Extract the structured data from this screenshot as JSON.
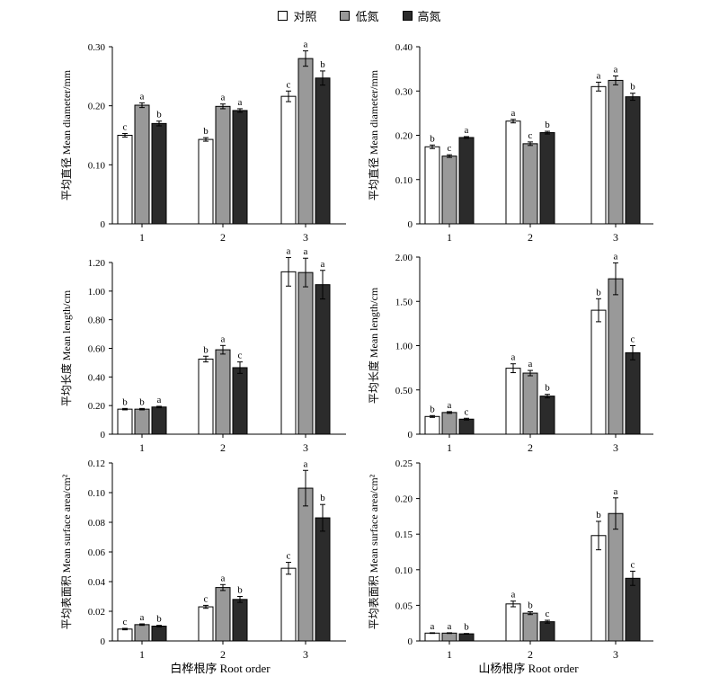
{
  "legend": [
    {
      "label": "对照",
      "color": "#ffffff"
    },
    {
      "label": "低氮",
      "color": "#999999"
    },
    {
      "label": "高氮",
      "color": "#2b2b2b"
    }
  ],
  "xlabels": {
    "left": "白桦根序 Root order",
    "right": "山杨根序 Root order"
  },
  "chart_data": [
    {
      "type": "bar",
      "panel": "left-top",
      "ylabel": "平均直径 Mean diameter/mm",
      "categories": [
        "1",
        "2",
        "3"
      ],
      "ylim": [
        0,
        0.3
      ],
      "yticks": [
        "0",
        "0.10",
        "0.20",
        "0.30"
      ],
      "ytick_values": [
        0,
        0.1,
        0.2,
        0.3
      ],
      "series": [
        {
          "name": "对照",
          "values": [
            0.15,
            0.143,
            0.216
          ],
          "errors": [
            0.003,
            0.003,
            0.009
          ],
          "letters": [
            "c",
            "b",
            "c"
          ]
        },
        {
          "name": "低氮",
          "values": [
            0.201,
            0.199,
            0.28
          ],
          "errors": [
            0.004,
            0.004,
            0.013
          ],
          "letters": [
            "a",
            "a",
            "a"
          ]
        },
        {
          "name": "高氮",
          "values": [
            0.17,
            0.192,
            0.247
          ],
          "errors": [
            0.004,
            0.003,
            0.012
          ],
          "letters": [
            "b",
            "a",
            "b"
          ]
        }
      ]
    },
    {
      "type": "bar",
      "panel": "right-top",
      "ylabel": "平均直径 Mean diameter/mm",
      "categories": [
        "1",
        "2",
        "3"
      ],
      "ylim": [
        0,
        0.4
      ],
      "yticks": [
        "0",
        "0.10",
        "0.20",
        "0.30",
        "0.40"
      ],
      "ytick_values": [
        0,
        0.1,
        0.2,
        0.3,
        0.4
      ],
      "series": [
        {
          "name": "对照",
          "values": [
            0.174,
            0.232,
            0.31
          ],
          "errors": [
            0.004,
            0.004,
            0.01
          ],
          "letters": [
            "b",
            "a",
            "a"
          ]
        },
        {
          "name": "低氮",
          "values": [
            0.153,
            0.181,
            0.324
          ],
          "errors": [
            0.003,
            0.004,
            0.01
          ],
          "letters": [
            "c",
            "c",
            "a"
          ]
        },
        {
          "name": "高氮",
          "values": [
            0.195,
            0.206,
            0.287
          ],
          "errors": [
            0.002,
            0.003,
            0.008
          ],
          "letters": [
            "a",
            "b",
            "b"
          ]
        }
      ]
    },
    {
      "type": "bar",
      "panel": "left-middle",
      "ylabel": "平均长度 Mean length/cm",
      "categories": [
        "1",
        "2",
        "3"
      ],
      "ylim": [
        0,
        1.2
      ],
      "yticks": [
        "0",
        "0.20",
        "0.40",
        "0.60",
        "0.80",
        "1.00",
        "1.20"
      ],
      "ytick_values": [
        0,
        0.2,
        0.4,
        0.6,
        0.8,
        1.0,
        1.2
      ],
      "series": [
        {
          "name": "对照",
          "values": [
            0.175,
            0.525,
            1.135
          ],
          "errors": [
            0.005,
            0.02,
            0.1
          ],
          "letters": [
            "b",
            "b",
            "a"
          ]
        },
        {
          "name": "低氮",
          "values": [
            0.175,
            0.59,
            1.13
          ],
          "errors": [
            0.005,
            0.03,
            0.1
          ],
          "letters": [
            "b",
            "a",
            "a"
          ]
        },
        {
          "name": "高氮",
          "values": [
            0.19,
            0.465,
            1.045
          ],
          "errors": [
            0.005,
            0.04,
            0.1
          ],
          "letters": [
            "a",
            "c",
            "a"
          ]
        }
      ]
    },
    {
      "type": "bar",
      "panel": "right-middle",
      "ylabel": "平均长度 Mean length/cm",
      "categories": [
        "1",
        "2",
        "3"
      ],
      "ylim": [
        0,
        2.0
      ],
      "yticks": [
        "0",
        "0.50",
        "1.00",
        "1.50",
        "2.00"
      ],
      "ytick_values": [
        0,
        0.5,
        1.0,
        1.5,
        2.0
      ],
      "series": [
        {
          "name": "对照",
          "values": [
            0.2,
            0.745,
            1.4
          ],
          "errors": [
            0.01,
            0.05,
            0.13
          ],
          "letters": [
            "b",
            "a",
            "b"
          ]
        },
        {
          "name": "低氮",
          "values": [
            0.245,
            0.69,
            1.755
          ],
          "errors": [
            0.01,
            0.03,
            0.18
          ],
          "letters": [
            "a",
            "a",
            "a"
          ]
        },
        {
          "name": "高氮",
          "values": [
            0.17,
            0.43,
            0.92
          ],
          "errors": [
            0.01,
            0.02,
            0.08
          ],
          "letters": [
            "c",
            "b",
            "c"
          ]
        }
      ]
    },
    {
      "type": "bar",
      "panel": "left-bottom",
      "ylabel": "平均表面积 Mean surface area/cm²",
      "categories": [
        "1",
        "2",
        "3"
      ],
      "ylim": [
        0,
        0.12
      ],
      "yticks": [
        "0",
        "0.02",
        "0.04",
        "0.06",
        "0.08",
        "0.10",
        "0.12"
      ],
      "ytick_values": [
        0,
        0.02,
        0.04,
        0.06,
        0.08,
        0.1,
        0.12
      ],
      "series": [
        {
          "name": "对照",
          "values": [
            0.008,
            0.023,
            0.049
          ],
          "errors": [
            0.0005,
            0.001,
            0.004
          ],
          "letters": [
            "c",
            "c",
            "c"
          ]
        },
        {
          "name": "低氮",
          "values": [
            0.011,
            0.036,
            0.103
          ],
          "errors": [
            0.0005,
            0.002,
            0.012
          ],
          "letters": [
            "a",
            "a",
            "a"
          ]
        },
        {
          "name": "高氮",
          "values": [
            0.01,
            0.028,
            0.083
          ],
          "errors": [
            0.0005,
            0.002,
            0.009
          ],
          "letters": [
            "b",
            "b",
            "b"
          ]
        }
      ]
    },
    {
      "type": "bar",
      "panel": "right-bottom",
      "ylabel": "平均表面积 Mean surface area/cm²",
      "categories": [
        "1",
        "2",
        "3"
      ],
      "ylim": [
        0,
        0.25
      ],
      "yticks": [
        "0",
        "0.05",
        "0.10",
        "0.15",
        "0.20",
        "0.25"
      ],
      "ytick_values": [
        0,
        0.05,
        0.1,
        0.15,
        0.2,
        0.25
      ],
      "series": [
        {
          "name": "对照",
          "values": [
            0.011,
            0.052,
            0.148
          ],
          "errors": [
            0.0005,
            0.004,
            0.02
          ],
          "letters": [
            "a",
            "a",
            "b"
          ]
        },
        {
          "name": "低氮",
          "values": [
            0.011,
            0.039,
            0.179
          ],
          "errors": [
            0.0005,
            0.002,
            0.022
          ],
          "letters": [
            "a",
            "b",
            "a"
          ]
        },
        {
          "name": "高氮",
          "values": [
            0.01,
            0.027,
            0.088
          ],
          "errors": [
            0.0005,
            0.002,
            0.01
          ],
          "letters": [
            "b",
            "c",
            "c"
          ]
        }
      ]
    }
  ]
}
